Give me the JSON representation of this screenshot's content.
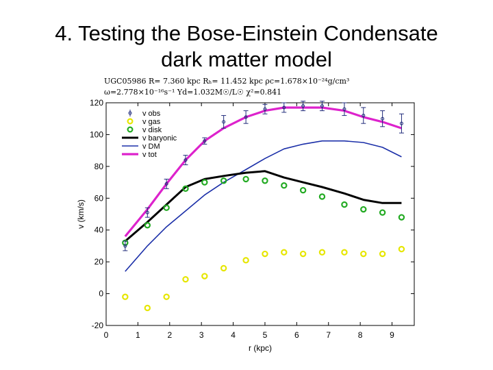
{
  "slide": {
    "title_line1": "4. Testing the Bose-Einstein Condensate",
    "title_line2": "dark matter model"
  },
  "params": {
    "line1": "UGC05986   R= 7.360 kpc   Rₕ= 11.452 kpc   ρc=1.678×10⁻²⁴g/cm³",
    "line2": "ω=2.778×10⁻¹⁶s⁻¹   Υd=1.032M☉/L☉   χ²=0.841"
  },
  "colors": {
    "obs": "#1f2a7a",
    "gas": "#e6e600",
    "disk": "#22aa22",
    "baryonic": "#000000",
    "dm": "#1a2ea8",
    "tot": "#dd22cc"
  },
  "chart_data": {
    "type": "line",
    "xlabel": "r (kpc)",
    "ylabel": "v (km/s)",
    "xlim": [
      0,
      9.7
    ],
    "ylim": [
      -20,
      120
    ],
    "xticks": [
      0,
      1,
      2,
      3,
      4,
      5,
      6,
      7,
      8,
      9
    ],
    "yticks": [
      -20,
      0,
      20,
      40,
      60,
      80,
      100,
      120
    ],
    "legend_position": "top-left",
    "series": [
      {
        "name": "v obs",
        "kind": "errorbar",
        "x": [
          0.6,
          1.3,
          1.9,
          2.5,
          3.1,
          3.7,
          4.4,
          5.0,
          5.6,
          6.2,
          6.8,
          7.5,
          8.1,
          8.7,
          9.3
        ],
        "y": [
          30,
          51,
          69,
          84,
          96,
          108,
          111,
          116,
          117,
          118,
          118,
          116,
          112,
          110,
          107
        ],
        "err": [
          3,
          3,
          3,
          3,
          2,
          4,
          4,
          3,
          3,
          3,
          3,
          4,
          5,
          5,
          6
        ]
      },
      {
        "name": "v gas",
        "kind": "marker",
        "x": [
          0.6,
          1.3,
          1.9,
          2.5,
          3.1,
          3.7,
          4.4,
          5.0,
          5.6,
          6.2,
          6.8,
          7.5,
          8.1,
          8.7,
          9.3
        ],
        "y": [
          -2,
          -9,
          -2,
          9,
          11,
          16,
          21,
          25,
          26,
          25,
          26,
          26,
          25,
          25,
          28
        ]
      },
      {
        "name": "v disk",
        "kind": "marker",
        "x": [
          0.6,
          1.3,
          1.9,
          2.5,
          3.1,
          3.7,
          4.4,
          5.0,
          5.6,
          6.2,
          6.8,
          7.5,
          8.1,
          8.7,
          9.3
        ],
        "y": [
          32,
          43,
          54,
          66,
          70,
          71,
          72,
          71,
          68,
          65,
          61,
          56,
          53,
          51,
          48
        ]
      },
      {
        "name": "v baryonic",
        "kind": "line",
        "x": [
          0.6,
          1.3,
          1.9,
          2.5,
          3.1,
          3.7,
          4.4,
          5.0,
          5.6,
          6.2,
          6.8,
          7.5,
          8.1,
          8.7,
          9.3
        ],
        "y": [
          33,
          45,
          56,
          67,
          72,
          74,
          76,
          77,
          73,
          70,
          67,
          63,
          59,
          57,
          57
        ]
      },
      {
        "name": "v DM",
        "kind": "line",
        "x": [
          0.6,
          1.3,
          1.9,
          2.5,
          3.1,
          3.7,
          4.4,
          5.0,
          5.6,
          6.2,
          6.8,
          7.5,
          8.1,
          8.7,
          9.3
        ],
        "y": [
          14,
          30,
          42,
          52,
          62,
          70,
          78,
          85,
          91,
          94,
          96,
          96,
          95,
          92,
          86
        ]
      },
      {
        "name": "v tot",
        "kind": "line",
        "x": [
          0.6,
          1.3,
          1.9,
          2.5,
          3.1,
          3.7,
          4.4,
          5.0,
          5.6,
          6.2,
          6.8,
          7.5,
          8.1,
          8.7,
          9.3
        ],
        "y": [
          36,
          53,
          69,
          84,
          96,
          104,
          111,
          115,
          117,
          117,
          117,
          115,
          111,
          108,
          104
        ]
      }
    ]
  }
}
